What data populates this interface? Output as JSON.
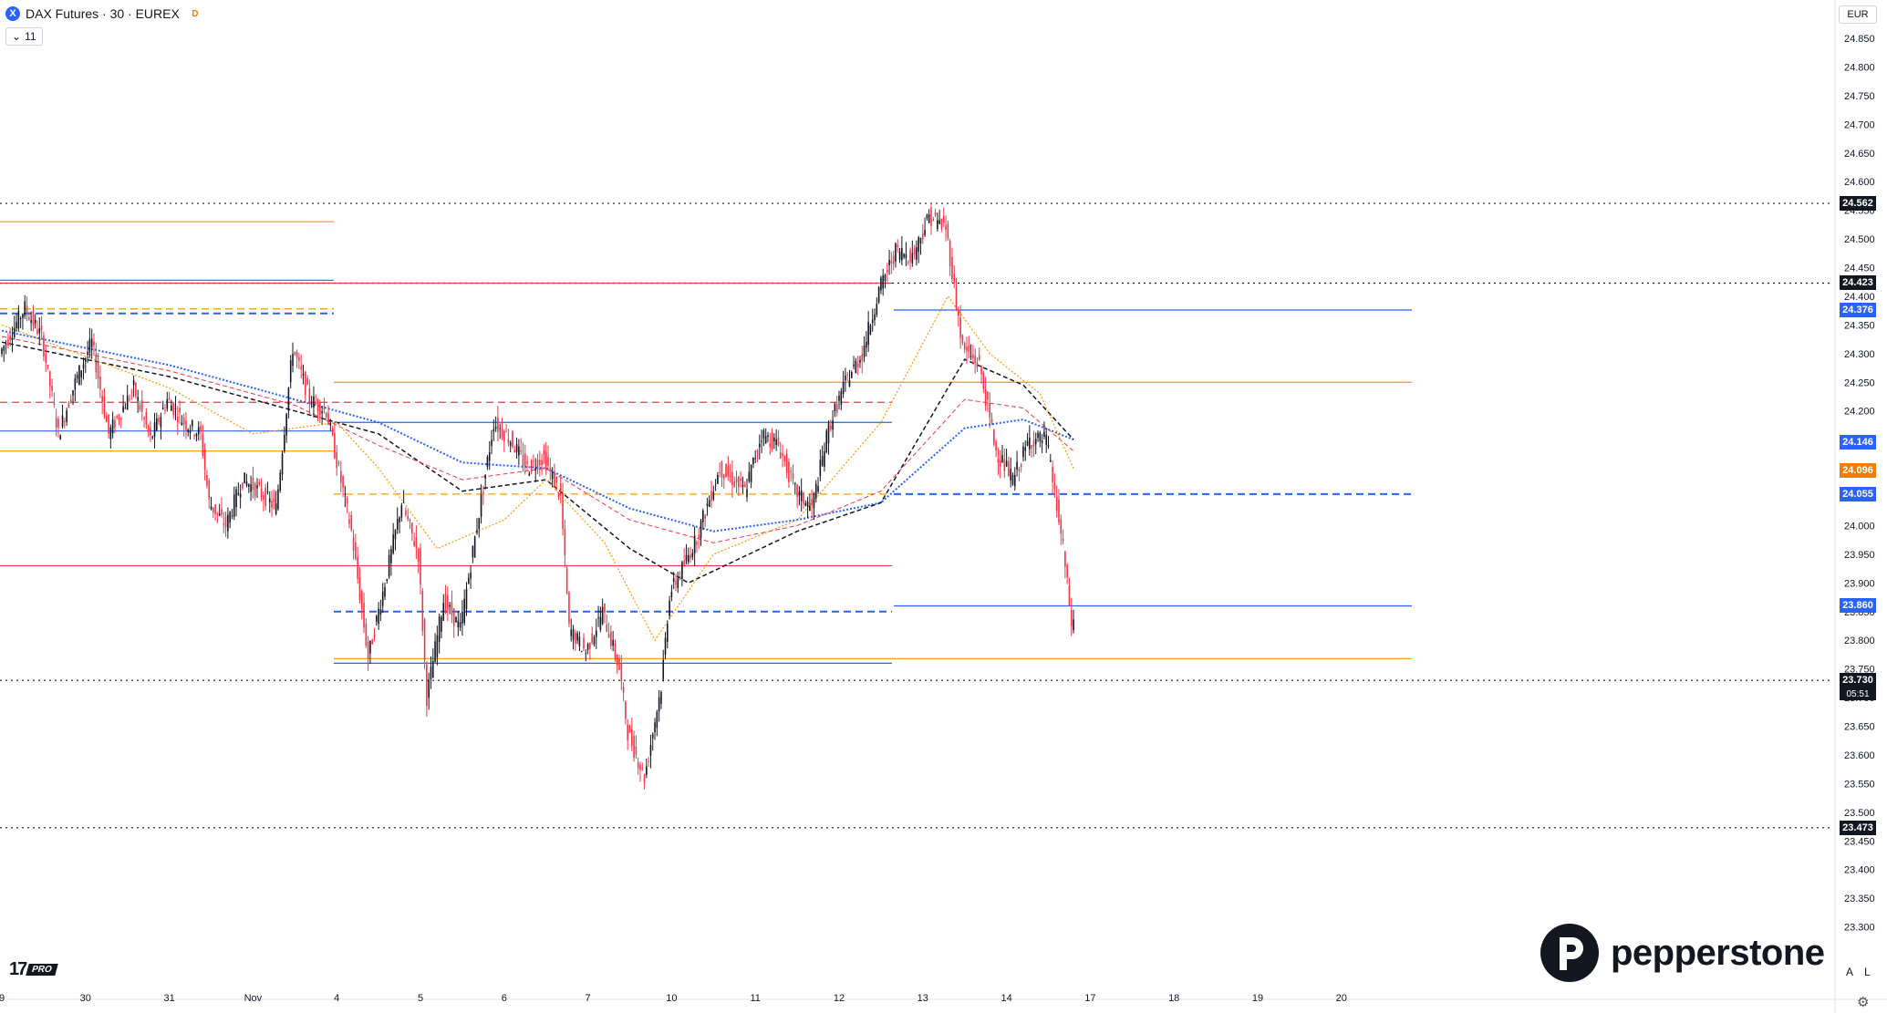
{
  "header": {
    "symbol_icon": "x-symbol-icon",
    "title": "DAX Futures · 30 · EUREX",
    "badge": "D",
    "indicator_count": "11",
    "currency": "EUR"
  },
  "axis_buttons": [
    "A",
    "L"
  ],
  "branding": {
    "tv_text": "17",
    "tv_pro": "PRO",
    "broker": "pepperstone"
  },
  "colors": {
    "up": "#131722",
    "down": "#f23645",
    "blue": "#2962ff",
    "orange": "#ff9800",
    "red": "#f23645"
  },
  "chart_data": {
    "type": "candlestick",
    "y_ticks": [
      "24.850",
      "24.800",
      "24.750",
      "24.700",
      "24.650",
      "24.600",
      "24.550",
      "24.500",
      "24.450",
      "24.400",
      "24.350",
      "24.300",
      "24.250",
      "24.200",
      "24.150",
      "24.100",
      "24.050",
      "24.000",
      "23.950",
      "23.900",
      "23.850",
      "23.800",
      "23.750",
      "23.700",
      "23.650",
      "23.600",
      "23.550",
      "23.500",
      "23.450",
      "23.400",
      "23.350",
      "23.300"
    ],
    "ylim": [
      23250,
      24885
    ],
    "x_labels": [
      {
        "label": "9",
        "idx": 0
      },
      {
        "label": "30",
        "idx": 10
      },
      {
        "label": "31",
        "idx": 20
      },
      {
        "label": "Nov",
        "idx": 30
      },
      {
        "label": "4",
        "idx": 40
      },
      {
        "label": "5",
        "idx": 50
      },
      {
        "label": "6",
        "idx": 60
      },
      {
        "label": "7",
        "idx": 70
      },
      {
        "label": "10",
        "idx": 80
      },
      {
        "label": "11",
        "idx": 90
      },
      {
        "label": "12",
        "idx": 100
      },
      {
        "label": "13",
        "idx": 110
      },
      {
        "label": "14",
        "idx": 120
      },
      {
        "label": "17",
        "idx": 130
      },
      {
        "label": "18",
        "idx": 140
      },
      {
        "label": "19",
        "idx": 150
      },
      {
        "label": "20",
        "idx": 160
      }
    ],
    "candle_path": [
      [
        0,
        24300
      ],
      [
        3,
        24380
      ],
      [
        5,
        24330
      ],
      [
        7,
        24160
      ],
      [
        9,
        24250
      ],
      [
        11,
        24320
      ],
      [
        13,
        24160
      ],
      [
        16,
        24240
      ],
      [
        18,
        24150
      ],
      [
        20,
        24220
      ],
      [
        22,
        24180
      ],
      [
        24,
        24160
      ],
      [
        25,
        24040
      ],
      [
        27,
        24000
      ],
      [
        29,
        24080
      ],
      [
        31,
        24060
      ],
      [
        33,
        24030
      ],
      [
        35,
        24310
      ],
      [
        37,
        24220
      ],
      [
        39,
        24200
      ],
      [
        40,
        24130
      ],
      [
        42,
        23990
      ],
      [
        44,
        23770
      ],
      [
        46,
        23900
      ],
      [
        48,
        24040
      ],
      [
        50,
        23950
      ],
      [
        51,
        23700
      ],
      [
        53,
        23870
      ],
      [
        55,
        23820
      ],
      [
        57,
        24000
      ],
      [
        59,
        24180
      ],
      [
        61,
        24150
      ],
      [
        63,
        24100
      ],
      [
        65,
        24120
      ],
      [
        67,
        24050
      ],
      [
        68,
        23820
      ],
      [
        70,
        23780
      ],
      [
        72,
        23850
      ],
      [
        74,
        23750
      ],
      [
        75,
        23640
      ],
      [
        77,
        23560
      ],
      [
        79,
        23720
      ],
      [
        80,
        23880
      ],
      [
        83,
        23970
      ],
      [
        86,
        24100
      ],
      [
        89,
        24060
      ],
      [
        91,
        24160
      ],
      [
        93,
        24140
      ],
      [
        95,
        24060
      ],
      [
        97,
        24030
      ],
      [
        99,
        24170
      ],
      [
        101,
        24250
      ],
      [
        103,
        24300
      ],
      [
        105,
        24410
      ],
      [
        107,
        24480
      ],
      [
        109,
        24470
      ],
      [
        111,
        24540
      ],
      [
        113,
        24520
      ],
      [
        115,
        24310
      ],
      [
        117,
        24280
      ],
      [
        119,
        24130
      ],
      [
        121,
        24080
      ],
      [
        123,
        24150
      ],
      [
        125,
        24150
      ],
      [
        127,
        23960
      ],
      [
        129,
        23700
      ]
    ],
    "candle_start_x": 2,
    "candle_spacing": 9.18,
    "last_idx": 128,
    "levels": [
      {
        "price": 24562,
        "style": "dotted",
        "color": "#131722",
        "start": 0,
        "end": 2010,
        "label": "24.562",
        "tag": "#131722"
      },
      {
        "price": 24423,
        "style": "dotted",
        "color": "#131722",
        "start": 0,
        "end": 2010,
        "label": "24.423",
        "tag": "#131722"
      },
      {
        "price": 23730,
        "style": "dotted",
        "color": "#131722",
        "start": 0,
        "end": 2010,
        "label": "23.730",
        "tag": "#131722"
      },
      {
        "price": 23473,
        "style": "dotted",
        "color": "#131722",
        "start": 0,
        "end": 2010,
        "label": "23.473",
        "tag": "#131722"
      },
      {
        "price": 24376,
        "style": "solid",
        "color": "#2962ff",
        "start": 980,
        "end": 1548,
        "label": "24.376",
        "tag": "#2962ff"
      },
      {
        "price": 23860,
        "style": "solid",
        "color": "#2962ff",
        "start": 980,
        "end": 1548,
        "label": "23.860",
        "tag": "#2962ff"
      },
      {
        "price": 24055,
        "style": "dashed",
        "color": "#2962ff",
        "start": 980,
        "end": 1548,
        "label": "24.055",
        "tag": "#2962ff"
      },
      {
        "price": 24250,
        "style": "solid",
        "color": "#ff9800",
        "start": 366,
        "end": 1548,
        "label": "",
        "tag": ""
      },
      {
        "price": 23768,
        "style": "solid",
        "color": "#ff9800",
        "start": 366,
        "end": 1548,
        "label": "",
        "tag": ""
      },
      {
        "price": 24423,
        "style": "solid",
        "color": "#f23645",
        "start": 0,
        "end": 978,
        "label": "",
        "tag": ""
      },
      {
        "price": 23930,
        "style": "solid",
        "color": "#f23645",
        "start": 0,
        "end": 978,
        "label": "",
        "tag": ""
      },
      {
        "price": 24215,
        "style": "dashed",
        "color": "#f23645",
        "start": 0,
        "end": 978,
        "label": "",
        "tag": ""
      },
      {
        "price": 24180,
        "style": "solid",
        "color": "#2962ff",
        "start": 366,
        "end": 978,
        "label": "",
        "tag": ""
      },
      {
        "price": 24165,
        "style": "solid",
        "color": "#2962ff",
        "start": 0,
        "end": 366,
        "label": "",
        "tag": ""
      },
      {
        "price": 23760,
        "style": "solid",
        "color": "#2962ff",
        "start": 366,
        "end": 978,
        "label": "",
        "tag": ""
      },
      {
        "price": 23850,
        "style": "dashed",
        "color": "#2962ff",
        "start": 366,
        "end": 978,
        "label": "",
        "tag": ""
      },
      {
        "price": 24370,
        "style": "dashed",
        "color": "#2962ff",
        "start": 0,
        "end": 366,
        "label": "",
        "tag": ""
      },
      {
        "price": 24378,
        "style": "dashed",
        "color": "#ff9800",
        "start": 0,
        "end": 366,
        "label": "",
        "tag": ""
      },
      {
        "price": 24530,
        "style": "solid",
        "color": "#ff9800",
        "start": 0,
        "end": 366,
        "label": "",
        "tag": ""
      },
      {
        "price": 24130,
        "style": "solid",
        "color": "#ff9800",
        "start": 0,
        "end": 366,
        "label": "",
        "tag": ""
      },
      {
        "price": 24055,
        "style": "dashed",
        "color": "#ff9800",
        "start": 366,
        "end": 978,
        "label": "",
        "tag": ""
      },
      {
        "price": 24428,
        "style": "solid",
        "color": "#2962ff",
        "start": 0,
        "end": 366,
        "label": "",
        "tag": ""
      }
    ],
    "ma_lines": [
      {
        "name": "",
        "color": "#2962ff",
        "style": "dotted",
        "width": 2,
        "points": [
          [
            0,
            24340
          ],
          [
            20,
            24280
          ],
          [
            35,
            24220
          ],
          [
            45,
            24180
          ],
          [
            55,
            24110
          ],
          [
            65,
            24100
          ],
          [
            75,
            24030
          ],
          [
            85,
            23990
          ],
          [
            95,
            24010
          ],
          [
            105,
            24040
          ],
          [
            115,
            24170
          ],
          [
            122,
            24185
          ],
          [
            128,
            24150
          ]
        ]
      },
      {
        "name": "",
        "color": "#131722",
        "style": "dashed",
        "width": 1.5,
        "points": [
          [
            0,
            24320
          ],
          [
            20,
            24260
          ],
          [
            35,
            24200
          ],
          [
            45,
            24160
          ],
          [
            55,
            24060
          ],
          [
            65,
            24080
          ],
          [
            75,
            23960
          ],
          [
            82,
            23900
          ],
          [
            95,
            23990
          ],
          [
            105,
            24040
          ],
          [
            115,
            24290
          ],
          [
            122,
            24245
          ],
          [
            128,
            24150
          ]
        ]
      },
      {
        "name": "",
        "color": "#f23645",
        "style": "dashed",
        "width": 1,
        "points": [
          [
            0,
            24330
          ],
          [
            20,
            24270
          ],
          [
            35,
            24210
          ],
          [
            45,
            24140
          ],
          [
            55,
            24080
          ],
          [
            65,
            24100
          ],
          [
            75,
            24010
          ],
          [
            85,
            23970
          ],
          [
            95,
            24000
          ],
          [
            105,
            24060
          ],
          [
            115,
            24220
          ],
          [
            122,
            24205
          ],
          [
            128,
            24130
          ]
        ]
      },
      {
        "name": "",
        "color": "#ff9800",
        "style": "dotted",
        "width": 1.2,
        "points": [
          [
            0,
            24350
          ],
          [
            20,
            24240
          ],
          [
            30,
            24160
          ],
          [
            40,
            24180
          ],
          [
            45,
            24100
          ],
          [
            52,
            23960
          ],
          [
            60,
            24010
          ],
          [
            65,
            24080
          ],
          [
            72,
            23970
          ],
          [
            78,
            23800
          ],
          [
            85,
            23950
          ],
          [
            95,
            24010
          ],
          [
            105,
            24180
          ],
          [
            113,
            24400
          ],
          [
            118,
            24300
          ],
          [
            124,
            24230
          ],
          [
            128,
            24100
          ]
        ]
      }
    ],
    "side_tags": [
      {
        "price": 24146,
        "label": "24.146",
        "color": "#2962ff"
      },
      {
        "price": 24096,
        "label": "24.096",
        "color": "#f57c00"
      }
    ],
    "last_price": {
      "price": 23730,
      "label": "23.730",
      "countdown": "05:51"
    }
  }
}
